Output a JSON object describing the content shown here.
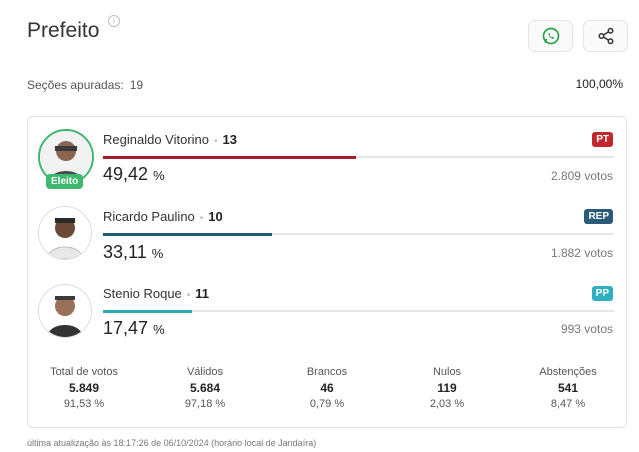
{
  "header": {
    "title": "Prefeito",
    "info_icon": "info-icon",
    "whatsapp_icon": "whatsapp-icon",
    "share_icon": "share-icon"
  },
  "secoes": {
    "label": "Seções apuradas:",
    "value": "19",
    "percent": "100,00%"
  },
  "candidates": [
    {
      "name": "Reginaldo Vitorino",
      "number": "13",
      "party": "PT",
      "party_color": "#c1272d",
      "bar_color": "#a51e2a",
      "percent": "49,42",
      "percent_unit": "%",
      "percent_value": 49.42,
      "votes": "2.809 votos",
      "elected_label": "Eleito"
    },
    {
      "name": "Ricardo Paulino",
      "number": "10",
      "party": "REP",
      "party_color": "#2b5a78",
      "bar_color": "#1f5c72",
      "percent": "33,11",
      "percent_unit": "%",
      "percent_value": 33.11,
      "votes": "1.882 votos"
    },
    {
      "name": "Stenio Roque",
      "number": "11",
      "party": "PP",
      "party_color": "#2fb0c0",
      "bar_color": "#2ba8b5",
      "percent": "17,47",
      "percent_unit": "%",
      "percent_value": 17.47,
      "votes": "993 votos"
    }
  ],
  "stats": [
    {
      "label": "Total de votos",
      "value": "5.849",
      "percent": "91,53 %"
    },
    {
      "label": "Válidos",
      "value": "5.684",
      "percent": "97,18 %"
    },
    {
      "label": "Brancos",
      "value": "46",
      "percent": "0,79 %"
    },
    {
      "label": "Nulos",
      "value": "119",
      "percent": "2,03 %"
    },
    {
      "label": "Abstenções",
      "value": "541",
      "percent": "8,47 %"
    }
  ],
  "footer": "última atualização às 18:17:26 de 06/10/2024 (horário local de Jandaíra)",
  "colors": {
    "eleito": "#3db86c",
    "whatsapp": "#25a244"
  }
}
